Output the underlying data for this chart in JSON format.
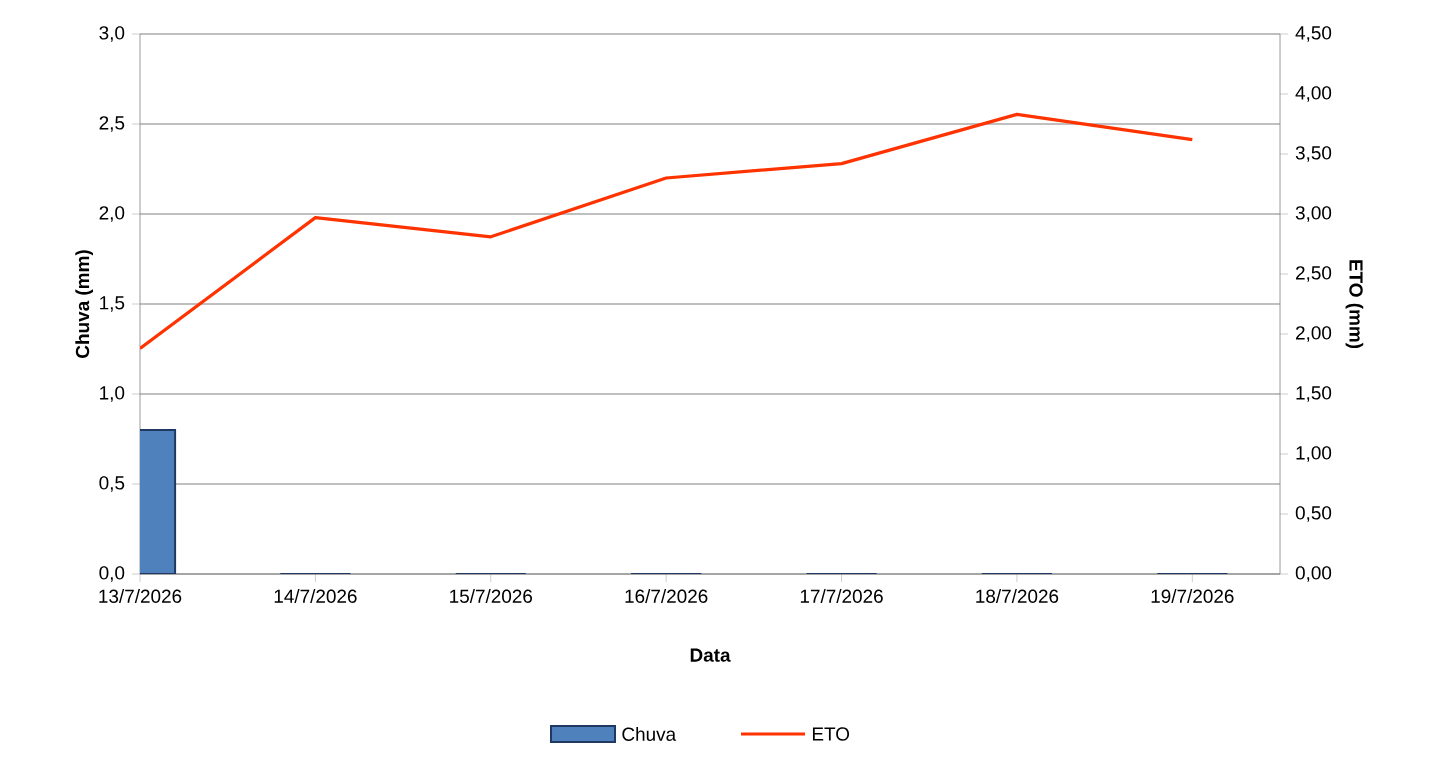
{
  "chart_data": {
    "type": "bar",
    "xlabel": "Data",
    "ylabel": "Chuva (mm)",
    "y2label": "ETO (mm)",
    "categories": [
      "13/7/2026",
      "14/7/2026",
      "15/7/2026",
      "16/7/2026",
      "17/7/2026",
      "18/7/2026",
      "19/7/2026"
    ],
    "series": [
      {
        "name": "Chuva",
        "color": "#4f81bd",
        "values": [
          0.8,
          0,
          0,
          0,
          0,
          0,
          0
        ]
      },
      {
        "name": "ETO",
        "type": "line",
        "axis": "y2",
        "color": "#ff3300",
        "values": [
          1.88,
          2.97,
          2.81,
          3.3,
          3.42,
          3.83,
          3.62
        ]
      }
    ],
    "ylim": [
      0,
      3
    ],
    "yticks": [
      {
        "value": 0,
        "label": "0,0"
      },
      {
        "value": 0.5,
        "label": "0,5"
      },
      {
        "value": 1,
        "label": "1,0"
      },
      {
        "value": 1.5,
        "label": "1,5"
      },
      {
        "value": 2,
        "label": "2,0"
      },
      {
        "value": 2.5,
        "label": "2,5"
      },
      {
        "value": 3,
        "label": "3,0"
      }
    ],
    "y2lim": [
      0,
      4.5
    ],
    "y2ticks": [
      {
        "value": 0,
        "label": "0,00"
      },
      {
        "value": 0.5,
        "label": "0,50"
      },
      {
        "value": 1,
        "label": "1,00"
      },
      {
        "value": 1.5,
        "label": "1,50"
      },
      {
        "value": 2,
        "label": "2,00"
      },
      {
        "value": 2.5,
        "label": "2,50"
      },
      {
        "value": 3,
        "label": "3,00"
      },
      {
        "value": 3.5,
        "label": "3,50"
      },
      {
        "value": 4,
        "label": "4,00"
      },
      {
        "value": 4.5,
        "label": "4,50"
      }
    ],
    "grid": "y",
    "legend": "bottom"
  }
}
